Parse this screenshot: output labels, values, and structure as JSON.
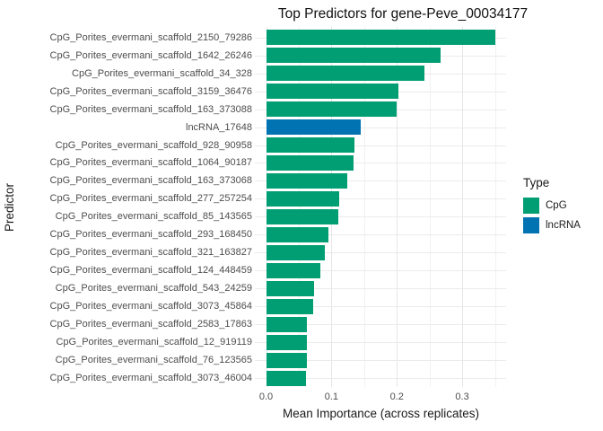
{
  "chart_data": {
    "type": "bar",
    "orientation": "horizontal",
    "title": "Top Predictors for gene-Peve_00034177",
    "xlabel": "Mean Importance (across replicates)",
    "ylabel": "Predictor",
    "x_ticks": [
      0.0,
      0.1,
      0.2,
      0.3
    ],
    "x_minor_ticks": [
      0.05,
      0.15,
      0.25,
      0.35
    ],
    "xlim": [
      -0.0175,
      0.3675
    ],
    "grid": "vertical major+minor, horizontal major per category, white background, no axis lines",
    "legend_position": "right",
    "categories": [
      "CpG_Porites_evermani_scaffold_2150_79286",
      "CpG_Porites_evermani_scaffold_1642_26246",
      "CpG_Porites_evermani_scaffold_34_328",
      "CpG_Porites_evermani_scaffold_3159_36476",
      "CpG_Porites_evermani_scaffold_163_373088",
      "lncRNA_17648",
      "CpG_Porites_evermani_scaffold_928_90958",
      "CpG_Porites_evermani_scaffold_1064_90187",
      "CpG_Porites_evermani_scaffold_163_373068",
      "CpG_Porites_evermani_scaffold_277_257254",
      "CpG_Porites_evermani_scaffold_85_143565",
      "CpG_Porites_evermani_scaffold_293_168450",
      "CpG_Porites_evermani_scaffold_321_163827",
      "CpG_Porites_evermani_scaffold_124_448459",
      "CpG_Porites_evermani_scaffold_543_24259",
      "CpG_Porites_evermani_scaffold_3073_45864",
      "CpG_Porites_evermani_scaffold_2583_17863",
      "CpG_Porites_evermani_scaffold_12_919119",
      "CpG_Porites_evermani_scaffold_76_123565",
      "CpG_Porites_evermani_scaffold_3073_46004"
    ],
    "values": [
      0.35,
      0.267,
      0.242,
      0.203,
      0.2,
      0.145,
      0.135,
      0.134,
      0.124,
      0.112,
      0.111,
      0.095,
      0.09,
      0.083,
      0.074,
      0.072,
      0.062,
      0.062,
      0.062,
      0.061
    ],
    "types": [
      "CpG",
      "CpG",
      "CpG",
      "CpG",
      "CpG",
      "lncRNA",
      "CpG",
      "CpG",
      "CpG",
      "CpG",
      "CpG",
      "CpG",
      "CpG",
      "CpG",
      "CpG",
      "CpG",
      "CpG",
      "CpG",
      "CpG",
      "CpG"
    ]
  },
  "legend": {
    "title": "Type",
    "entries": [
      {
        "label": "CpG",
        "color": "#029e73"
      },
      {
        "label": "lncRNA",
        "color": "#0173b2"
      }
    ]
  },
  "colors": {
    "CpG": "#029e73",
    "lncRNA": "#0173b2",
    "grid_major": "#e6e6e6",
    "grid_minor": "#f1f1f1",
    "axis_text": "#4d4d4d",
    "title_text": "#111111"
  }
}
